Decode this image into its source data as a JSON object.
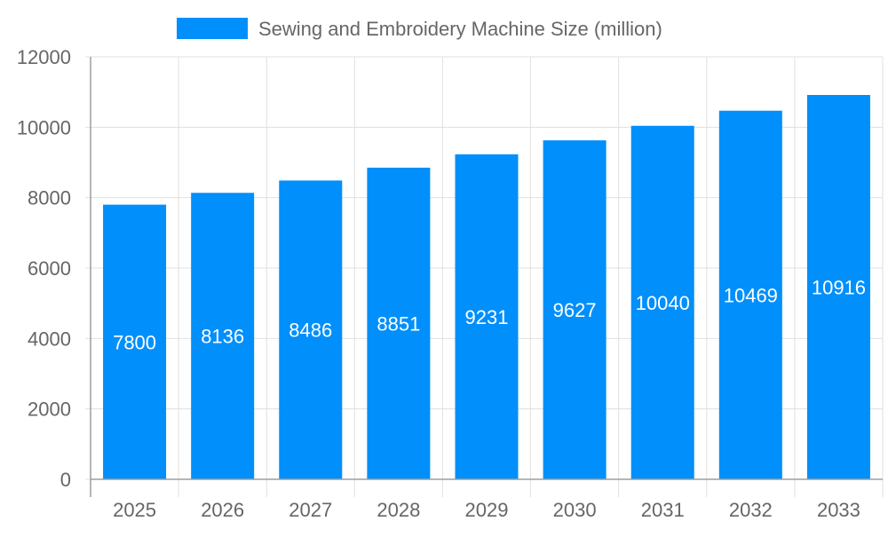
{
  "chart_data": {
    "type": "bar",
    "title": "",
    "xlabel": "",
    "ylabel": "",
    "categories": [
      "2025",
      "2026",
      "2027",
      "2028",
      "2029",
      "2030",
      "2031",
      "2032",
      "2033"
    ],
    "series": [
      {
        "name": "Sewing and Embroidery Machine Size (million)",
        "values": [
          7800,
          8136,
          8486,
          8851,
          9231,
          9627,
          10040,
          10469,
          10916
        ]
      }
    ],
    "ylim": [
      0,
      12000
    ],
    "yticks": [
      0,
      2000,
      4000,
      6000,
      8000,
      10000,
      12000
    ],
    "grid": true,
    "legend_position": "top-center",
    "data_labels": true,
    "colors": {
      "bar": "#008ffb",
      "grid": "#e0e0e0",
      "axis": "#9e9e9e",
      "text": "#666666",
      "label": "#ffffff"
    }
  }
}
